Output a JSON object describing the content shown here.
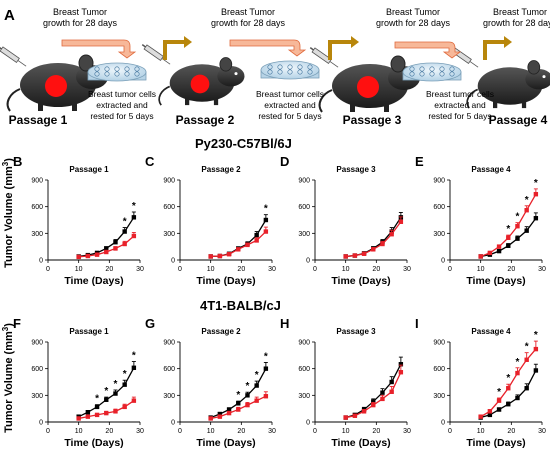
{
  "panel_a": {
    "letter": "A",
    "growth_text": [
      "Breast Tumor",
      "growth for 28 days"
    ],
    "rest_text": [
      "Breast tumor cells",
      "extracted and",
      "rested for 5 days"
    ],
    "passages": [
      "Passage 1",
      "Passage 2",
      "Passage 3",
      "Passage 4"
    ]
  },
  "sections": [
    {
      "heading": "Py230-C57Bl/6J",
      "y_label": "Tumor Volume (mm",
      "y_label_sup": "3",
      "y_label_end": ")"
    },
    {
      "heading": "4T1-BALB/cJ",
      "y_label": "Tumor Volume (mm",
      "y_label_sup": "3",
      "y_label_end": ")"
    }
  ],
  "colors": {
    "black_series": "#000000",
    "red_series": "#e8212a",
    "arrow_fill": "#f7b899",
    "arrow_stroke": "#e06a3c",
    "gold_arrow": "#b8860b",
    "tumor": "#ff1010",
    "mouse": "#333333",
    "dish": "#7fb3d5"
  },
  "chart_data": [
    {
      "type": "line",
      "letter": "B",
      "title": "Passage 1",
      "xlabel": "Time (Days)",
      "ylabel": "Tumor Volume (mm3)",
      "xlim": [
        0,
        30
      ],
      "ylim": [
        0,
        900
      ],
      "xticks": [
        0,
        10,
        20,
        30
      ],
      "yticks": [
        0,
        300,
        600,
        900
      ],
      "x": [
        10,
        13,
        16,
        19,
        22,
        25,
        28
      ],
      "series": [
        {
          "color": "black",
          "values": [
            40,
            55,
            80,
            130,
            200,
            320,
            480
          ],
          "errors": [
            8,
            10,
            15,
            20,
            30,
            45,
            60
          ]
        },
        {
          "color": "red",
          "values": [
            35,
            45,
            60,
            90,
            130,
            180,
            270
          ],
          "errors": [
            6,
            8,
            10,
            15,
            20,
            30,
            40
          ]
        }
      ],
      "annotations": [
        {
          "x": 25,
          "text": "*"
        },
        {
          "x": 28,
          "text": "*"
        }
      ]
    },
    {
      "type": "line",
      "letter": "C",
      "title": "Passage 2",
      "xlabel": "Time (Days)",
      "xlim": [
        0,
        30
      ],
      "ylim": [
        0,
        900
      ],
      "xticks": [
        0,
        10,
        20,
        30
      ],
      "yticks": [
        0,
        300,
        600,
        900
      ],
      "x": [
        10,
        13,
        16,
        19,
        22,
        25,
        28
      ],
      "series": [
        {
          "color": "black",
          "values": [
            40,
            45,
            70,
            130,
            180,
            280,
            450
          ],
          "errors": [
            5,
            8,
            10,
            15,
            25,
            40,
            60
          ]
        },
        {
          "color": "red",
          "values": [
            40,
            45,
            65,
            120,
            170,
            220,
            320
          ],
          "errors": [
            5,
            8,
            10,
            15,
            20,
            30,
            50
          ]
        }
      ],
      "annotations": [
        {
          "x": 28,
          "text": "*"
        }
      ]
    },
    {
      "type": "line",
      "letter": "D",
      "title": "Passage 3",
      "xlabel": "Time (Days)",
      "xlim": [
        0,
        30
      ],
      "ylim": [
        0,
        900
      ],
      "xticks": [
        0,
        10,
        20,
        30
      ],
      "yticks": [
        0,
        300,
        600,
        900
      ],
      "x": [
        10,
        13,
        16,
        19,
        22,
        25,
        28
      ],
      "series": [
        {
          "color": "black",
          "values": [
            40,
            50,
            75,
            130,
            200,
            320,
            480
          ],
          "errors": [
            6,
            8,
            12,
            20,
            30,
            45,
            55
          ]
        },
        {
          "color": "red",
          "values": [
            40,
            50,
            70,
            120,
            180,
            290,
            430
          ],
          "errors": [
            6,
            8,
            12,
            20,
            30,
            45,
            55
          ]
        }
      ],
      "annotations": []
    },
    {
      "type": "line",
      "letter": "E",
      "title": "Passage 4",
      "xlabel": "Time (Days)",
      "xlim": [
        0,
        30
      ],
      "ylim": [
        0,
        900
      ],
      "xticks": [
        0,
        10,
        20,
        30
      ],
      "yticks": [
        0,
        300,
        600,
        900
      ],
      "x": [
        10,
        13,
        16,
        19,
        22,
        25,
        28
      ],
      "series": [
        {
          "color": "black",
          "values": [
            40,
            60,
            100,
            160,
            240,
            330,
            470
          ],
          "errors": [
            8,
            10,
            15,
            25,
            30,
            45,
            60
          ]
        },
        {
          "color": "red",
          "values": [
            40,
            80,
            150,
            250,
            380,
            560,
            740
          ],
          "errors": [
            8,
            12,
            20,
            30,
            40,
            50,
            60
          ]
        }
      ],
      "annotations": [
        {
          "x": 19,
          "text": "*"
        },
        {
          "x": 22,
          "text": "*"
        },
        {
          "x": 25,
          "text": "*"
        },
        {
          "x": 28,
          "text": "*"
        }
      ]
    },
    {
      "type": "line",
      "letter": "F",
      "title": "Passage 1",
      "xlabel": "Time (Days)",
      "ylabel": "Tumor Volume (mm3)",
      "xlim": [
        0,
        30
      ],
      "ylim": [
        0,
        900
      ],
      "xticks": [
        0,
        10,
        20,
        30
      ],
      "yticks": [
        0,
        300,
        600,
        900
      ],
      "x": [
        10,
        13,
        16,
        19,
        22,
        25,
        28
      ],
      "series": [
        {
          "color": "black",
          "values": [
            60,
            110,
            170,
            250,
            320,
            420,
            610
          ],
          "errors": [
            15,
            20,
            25,
            30,
            40,
            50,
            70
          ]
        },
        {
          "color": "red",
          "values": [
            40,
            60,
            80,
            100,
            120,
            170,
            240
          ],
          "errors": [
            10,
            15,
            15,
            20,
            25,
            30,
            40
          ]
        }
      ],
      "annotations": [
        {
          "x": 16,
          "text": "*"
        },
        {
          "x": 19,
          "text": "*"
        },
        {
          "x": 22,
          "text": "*"
        },
        {
          "x": 25,
          "text": "*"
        },
        {
          "x": 28,
          "text": "*"
        }
      ]
    },
    {
      "type": "line",
      "letter": "G",
      "title": "Passage 2",
      "xlabel": "Time (Days)",
      "xlim": [
        0,
        30
      ],
      "ylim": [
        0,
        900
      ],
      "xticks": [
        0,
        10,
        20,
        30
      ],
      "yticks": [
        0,
        300,
        600,
        900
      ],
      "x": [
        10,
        13,
        16,
        19,
        22,
        25,
        28
      ],
      "series": [
        {
          "color": "black",
          "values": [
            50,
            90,
            140,
            210,
            300,
            410,
            600
          ],
          "errors": [
            10,
            15,
            20,
            25,
            35,
            50,
            70
          ]
        },
        {
          "color": "red",
          "values": [
            40,
            60,
            100,
            140,
            190,
            240,
            290
          ],
          "errors": [
            10,
            15,
            20,
            25,
            30,
            40,
            50
          ]
        }
      ],
      "annotations": [
        {
          "x": 19,
          "text": "*"
        },
        {
          "x": 22,
          "text": "*"
        },
        {
          "x": 25,
          "text": "*"
        },
        {
          "x": 28,
          "text": "*"
        }
      ]
    },
    {
      "type": "line",
      "letter": "H",
      "title": "Passage 3",
      "xlabel": "Time (Days)",
      "xlim": [
        0,
        30
      ],
      "ylim": [
        0,
        900
      ],
      "xticks": [
        0,
        10,
        20,
        30
      ],
      "yticks": [
        0,
        300,
        600,
        900
      ],
      "x": [
        10,
        13,
        16,
        19,
        22,
        25,
        28
      ],
      "series": [
        {
          "color": "black",
          "values": [
            50,
            80,
            140,
            230,
            330,
            450,
            650
          ],
          "errors": [
            10,
            15,
            25,
            30,
            45,
            60,
            80
          ]
        },
        {
          "color": "red",
          "values": [
            50,
            70,
            120,
            190,
            260,
            340,
            560
          ],
          "errors": [
            10,
            15,
            20,
            30,
            40,
            60,
            80
          ]
        }
      ],
      "annotations": []
    },
    {
      "type": "line",
      "letter": "I",
      "title": "Passage 4",
      "xlabel": "Time (Days)",
      "xlim": [
        0,
        30
      ],
      "ylim": [
        0,
        900
      ],
      "xticks": [
        0,
        10,
        20,
        30
      ],
      "yticks": [
        0,
        300,
        600,
        900
      ],
      "x": [
        10,
        13,
        16,
        19,
        22,
        25,
        28
      ],
      "series": [
        {
          "color": "black",
          "values": [
            50,
            80,
            140,
            200,
            270,
            380,
            580
          ],
          "errors": [
            10,
            15,
            20,
            25,
            35,
            50,
            70
          ]
        },
        {
          "color": "red",
          "values": [
            60,
            120,
            240,
            380,
            550,
            700,
            820
          ],
          "errors": [
            15,
            20,
            30,
            45,
            60,
            80,
            90
          ]
        }
      ],
      "annotations": [
        {
          "x": 16,
          "text": "*"
        },
        {
          "x": 19,
          "text": "*"
        },
        {
          "x": 22,
          "text": "*"
        },
        {
          "x": 25,
          "text": "*"
        },
        {
          "x": 28,
          "text": "*"
        }
      ]
    }
  ]
}
